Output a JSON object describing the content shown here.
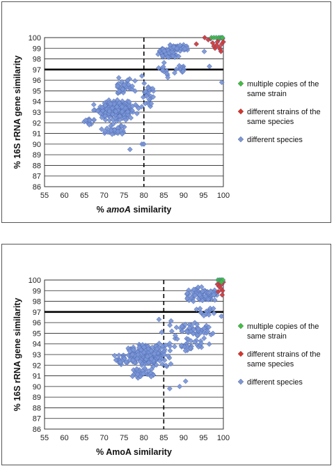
{
  "chart_data": [
    {
      "type": "scatter",
      "xlabel_prefix": "% ",
      "xlabel_gene": "amoA",
      "xlabel_suffix": " similarity",
      "ylabel": "% 16S rRNA gene similarity",
      "xlim": [
        55,
        100
      ],
      "ylim": [
        86,
        100
      ],
      "x_ticks": [
        55,
        60,
        65,
        70,
        75,
        80,
        85,
        90,
        95,
        100
      ],
      "y_ticks": [
        86,
        87,
        88,
        89,
        90,
        91,
        92,
        93,
        94,
        95,
        96,
        97,
        98,
        99,
        100
      ],
      "grid": "horizontal",
      "threshold_y": 97,
      "threshold_x": 80,
      "legend": {
        "position": "right",
        "entries": [
          {
            "lines": [
              "multiple copies of the",
              "same strain"
            ],
            "color": "#3fbf3f"
          },
          {
            "lines": [
              "different strains of the",
              "same species"
            ],
            "color": "#d9332b"
          },
          {
            "lines": [
              "different species"
            ],
            "color": "#7a96d8"
          }
        ]
      },
      "series": [
        {
          "key": "multiple copies of the same strain",
          "color": "#3fbf3f",
          "points": [
            [
              97.0,
              100
            ],
            [
              97.6,
              100
            ],
            [
              98.2,
              100
            ],
            [
              98.8,
              100
            ],
            [
              99.2,
              100
            ],
            [
              99.6,
              100
            ],
            [
              99.8,
              100
            ]
          ]
        },
        {
          "key": "different strains of the same species",
          "color": "#d9332b",
          "points": [
            [
              93.2,
              99.4
            ],
            [
              95.3,
              100
            ],
            [
              96.2,
              99.8
            ],
            [
              96.8,
              99.9
            ],
            [
              97.3,
              99.5
            ],
            [
              97.6,
              99.2
            ],
            [
              97.9,
              99.0
            ],
            [
              98.3,
              99.3
            ],
            [
              98.5,
              99.6
            ],
            [
              98.8,
              99.8
            ],
            [
              99.0,
              99.1
            ],
            [
              99.2,
              98.9
            ],
            [
              99.4,
              98.7
            ],
            [
              99.6,
              99.4
            ],
            [
              99.8,
              99.9
            ],
            [
              100,
              99.6
            ]
          ]
        },
        {
          "key": "different species",
          "color": "#7a96d8",
          "generator": "clusters",
          "seed": 11,
          "clusters": [
            {
              "n": 200,
              "x": [
                67,
                79
              ],
              "y": [
                92.1,
                94.2
              ]
            },
            {
              "n": 28,
              "x": [
                69,
                76
              ],
              "y": [
                90.8,
                92
              ]
            },
            {
              "n": 38,
              "x": [
                72,
                78
              ],
              "y": [
                94.5,
                96.3
              ]
            },
            {
              "n": 12,
              "x": [
                64.8,
                68
              ],
              "y": [
                91.8,
                92.6
              ]
            },
            {
              "n": 24,
              "x": [
                79,
                83
              ],
              "y": [
                93,
                96
              ]
            },
            {
              "n": 65,
              "x": [
                83,
                90
              ],
              "y": [
                98,
                99.1
              ]
            },
            {
              "n": 28,
              "x": [
                86,
                91
              ],
              "y": [
                98.7,
                99.4
              ]
            },
            {
              "n": 12,
              "x": [
                83,
                88
              ],
              "y": [
                96.2,
                97.8
              ]
            },
            {
              "n": 10,
              "x": [
                88,
                91
              ],
              "y": [
                96.5,
                97.6
              ]
            }
          ],
          "points": [
            [
              76.5,
              89.5
            ],
            [
              79.5,
              90
            ],
            [
              80,
              90
            ],
            [
              95.2,
              98.7
            ],
            [
              96.5,
              97.3
            ],
            [
              99.6,
              95.8
            ],
            [
              79.5,
              96.4
            ],
            [
              81,
              95.3
            ]
          ]
        }
      ]
    },
    {
      "type": "scatter",
      "xlabel_prefix": "% ",
      "xlabel_gene": "AmoA",
      "xlabel_suffix": " similarity",
      "ylabel": "% 16S rRNA gene similarity",
      "xlim": [
        55,
        100
      ],
      "ylim": [
        86,
        100
      ],
      "x_ticks": [
        55,
        60,
        65,
        70,
        75,
        80,
        85,
        90,
        95,
        100
      ],
      "y_ticks": [
        86,
        87,
        88,
        89,
        90,
        91,
        92,
        93,
        94,
        95,
        96,
        97,
        98,
        99,
        100
      ],
      "grid": "horizontal",
      "threshold_y": 97,
      "threshold_x": 85,
      "legend": {
        "position": "right",
        "entries": [
          {
            "lines": [
              "multiple copies of the",
              "same strain"
            ],
            "color": "#3fbf3f"
          },
          {
            "lines": [
              "different strains of the",
              "same species"
            ],
            "color": "#d9332b"
          },
          {
            "lines": [
              "different species"
            ],
            "color": "#7a96d8"
          }
        ]
      },
      "series": [
        {
          "key": "multiple copies of the same strain",
          "color": "#3fbf3f",
          "points": [
            [
              98.6,
              100
            ],
            [
              99.0,
              100
            ],
            [
              99.3,
              100
            ],
            [
              99.6,
              100
            ],
            [
              99.9,
              100
            ],
            [
              99.5,
              99.8
            ]
          ]
        },
        {
          "key": "different strains of the same species",
          "color": "#d9332b",
          "points": [
            [
              98.5,
              99.6
            ],
            [
              98.9,
              99.4
            ],
            [
              99.2,
              99.9
            ],
            [
              99.4,
              99.2
            ],
            [
              99.6,
              99.6
            ],
            [
              99.8,
              99.0
            ],
            [
              100,
              99.8
            ],
            [
              99.1,
              99.7
            ],
            [
              99.7,
              98.6
            ],
            [
              98.7,
              98.9
            ]
          ]
        },
        {
          "key": "different species",
          "color": "#7a96d8",
          "generator": "clusters",
          "seed": 23,
          "clusters": [
            {
              "n": 190,
              "x": [
                75,
                87
              ],
              "y": [
                91.8,
                94.2
              ]
            },
            {
              "n": 30,
              "x": [
                76,
                83
              ],
              "y": [
                90.6,
                91.8
              ]
            },
            {
              "n": 20,
              "x": [
                72.5,
                76
              ],
              "y": [
                92,
                93
              ]
            },
            {
              "n": 80,
              "x": [
                90,
                99.5
              ],
              "y": [
                97.8,
                99.4
              ]
            },
            {
              "n": 60,
              "x": [
                86,
                98
              ],
              "y": [
                94.2,
                96.5
              ]
            },
            {
              "n": 25,
              "x": [
                85,
                97
              ],
              "y": [
                93.2,
                94.3
              ]
            },
            {
              "n": 15,
              "x": [
                93,
                98
              ],
              "y": [
                96.5,
                97.5
              ]
            }
          ],
          "points": [
            [
              86.5,
              89.8
            ],
            [
              89,
              90
            ],
            [
              90.5,
              90.5
            ],
            [
              83.8,
              96.3
            ],
            [
              84.5,
              95.1
            ],
            [
              99.5,
              96.6
            ]
          ]
        }
      ]
    }
  ]
}
